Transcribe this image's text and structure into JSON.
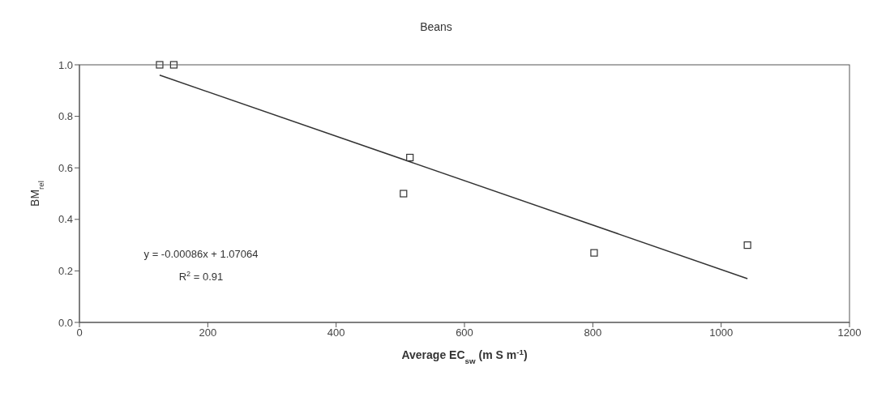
{
  "chart_data": {
    "type": "scatter",
    "title": "Beans",
    "xlabel": "Average EC$_{sw}$ (m S m$^{-1}$)",
    "ylabel": "BM$_{rel}$",
    "series": [
      {
        "color": "#333333",
        "marker": "square",
        "x": [
          125,
          147,
          505,
          515,
          802,
          1041
        ],
        "values": [
          1.0,
          1.0,
          0.5,
          0.64,
          0.27,
          0.3
        ]
      },
      {
        "type": "line",
        "color": "#333333",
        "marker": "none",
        "line_style": "solid",
        "x": [
          125,
          1041
        ],
        "values": [
          0.96,
          0.17
        ]
      }
    ],
    "xlim": [
      0,
      1200
    ],
    "xticks": [
      0,
      200,
      400,
      600,
      800,
      1000,
      1200
    ],
    "ylim": [
      0,
      1
    ],
    "yticks": [
      {
        "value": 0,
        "label": "0.0"
      },
      {
        "value": 0.2,
        "label": "0.2"
      },
      {
        "value": 0.4,
        "label": "0.4"
      },
      {
        "value": 0.6,
        "label": "0.6"
      },
      {
        "value": 0.8,
        "label": "0.8"
      },
      {
        "value": 1,
        "label": "1.0"
      }
    ],
    "grid": false,
    "legend": false,
    "annotations": [
      "y = -0.00086x + 1.07064",
      "R$^{2}$ = 0.91"
    ]
  }
}
